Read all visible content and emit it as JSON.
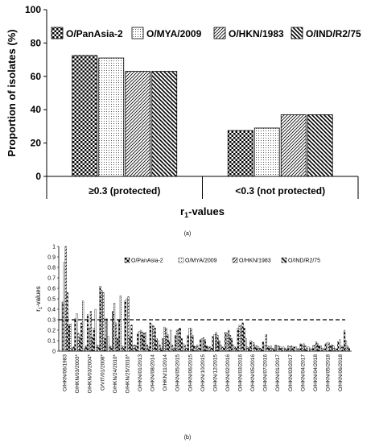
{
  "figure": {
    "caption_a": "(a)",
    "caption_b": "(b)"
  },
  "chart_data": [
    {
      "type": "bar",
      "title": "",
      "xlabel": "r1-values",
      "ylabel": "Proportion of isolates (%)",
      "ylim": [
        0,
        100
      ],
      "yticks": [
        "0",
        "20",
        "40",
        "60",
        "80",
        "100"
      ],
      "categories": [
        "≥0.3 (protected)",
        "<0.3 (not protected)"
      ],
      "series": [
        {
          "name": "O/PanAsia-2",
          "values": [
            72.5,
            27.5
          ]
        },
        {
          "name": "O/MYA/2009",
          "values": [
            71,
            29
          ]
        },
        {
          "name": "O/HKN/1983",
          "values": [
            63,
            37
          ]
        },
        {
          "name": "O/IND/R2/75",
          "values": [
            63,
            37
          ]
        }
      ],
      "legend": "top",
      "grid": false
    },
    {
      "type": "bar",
      "title": "",
      "xlabel": "",
      "ylabel": "r1-values",
      "ylim": [
        0,
        1
      ],
      "yticks": [
        "0",
        "0.1",
        "0.2",
        "0.3",
        "0.4",
        "0.5",
        "0.6",
        "0.7",
        "0.8",
        "0.9",
        "1"
      ],
      "threshold": 0.3,
      "legend": "top",
      "grid": false,
      "categories": [
        "O/HKN/06/1983",
        "",
        "O/HKN/03/2003*",
        "",
        "O/HKN/03/2004*",
        "",
        "O/VIT/01/2008*",
        "",
        "O/HKN/24/2010*",
        "",
        "O/HKN/25/2010*",
        "",
        "O/HKN/01/2013",
        "",
        "O/HKN/08/2014",
        "",
        "O/HKN/11/2014",
        "",
        "O/HKN/05/2015",
        "",
        "O/HKN/06/2015",
        "",
        "O/HKN/10/2015",
        "",
        "O/HKN/12/2015",
        "",
        "O/HKN/02/2016",
        "",
        "O/HKN/03/2016",
        "",
        "O/HKN/05/2016",
        "",
        "O/HKN/07/2016",
        "",
        "O/HKN/01/2017",
        "",
        "O/HKN/03/2017",
        "",
        "O/HKN/04/2017",
        "",
        "O/HKN/04/2018",
        "",
        "O/HKN/05/2018",
        "",
        "O/HKN/06/2018",
        ""
      ],
      "series": [
        {
          "name": "O/PanAsia-2",
          "values": [
            0.47,
            0.25,
            0.31,
            0.27,
            0.35,
            0.22,
            0.62,
            0.31,
            0.38,
            0.3,
            0.48,
            0.25,
            0.17,
            0.17,
            0.27,
            0.12,
            0.12,
            0.1,
            0.15,
            0.12,
            0.15,
            0.05,
            0.11,
            0.05,
            0.14,
            0.1,
            0.18,
            0.12,
            0.22,
            0.22,
            0.1,
            0.05,
            0.09,
            0.04,
            0.06,
            0.03,
            0.05,
            0.04,
            0.07,
            0.03,
            0.05,
            0.05,
            0.07,
            0.06,
            0.09,
            0.2
          ]
        },
        {
          "name": "O/MYA/2009",
          "values": [
            0.85,
            0.26,
            0.36,
            0.48,
            0.22,
            0.4,
            0.58,
            0.14,
            0.46,
            0.53,
            0.5,
            0.05,
            0.19,
            0.18,
            0.25,
            0.1,
            0.23,
            0.2,
            0.2,
            0.07,
            0.22,
            0.04,
            0.12,
            0.04,
            0.16,
            0.06,
            0.17,
            0.06,
            0.25,
            0.12,
            0.09,
            0.04,
            0.06,
            0.05,
            0.05,
            0.04,
            0.04,
            0.04,
            0.06,
            0.04,
            0.06,
            0.05,
            0.08,
            0.05,
            0.11,
            0.1
          ]
        },
        {
          "name": "O/HKN/1983",
          "values": [
            1.0,
            0.03,
            0.17,
            0.03,
            0.38,
            0.06,
            0.56,
            0.05,
            0.27,
            0.05,
            0.52,
            0.06,
            0.2,
            0.06,
            0.24,
            0.06,
            0.22,
            0.06,
            0.21,
            0.06,
            0.22,
            0.06,
            0.13,
            0.04,
            0.18,
            0.04,
            0.2,
            0.04,
            0.24,
            0.04,
            0.08,
            0.03,
            0.16,
            0.03,
            0.05,
            0.03,
            0.05,
            0.03,
            0.07,
            0.03,
            0.09,
            0.03,
            0.08,
            0.03,
            0.05,
            0.05
          ]
        },
        {
          "name": "O/IND/R2/75",
          "values": [
            0.56,
            0.04,
            0.13,
            0.05,
            0.13,
            0.05,
            0.12,
            0.04,
            0.12,
            0.04,
            0.14,
            0.05,
            0.18,
            0.04,
            0.22,
            0.03,
            0.16,
            0.03,
            0.22,
            0.03,
            0.15,
            0.03,
            0.11,
            0.03,
            0.15,
            0.03,
            0.15,
            0.03,
            0.27,
            0.03,
            0.05,
            0.02,
            0.05,
            0.02,
            0.04,
            0.02,
            0.04,
            0.02,
            0.05,
            0.02,
            0.07,
            0.02,
            0.05,
            0.02,
            0.04,
            0.03
          ]
        }
      ]
    }
  ],
  "colors": {
    "axis": "#000000",
    "bar_fill": "#ffffff",
    "pattern_ink": "#000000"
  }
}
